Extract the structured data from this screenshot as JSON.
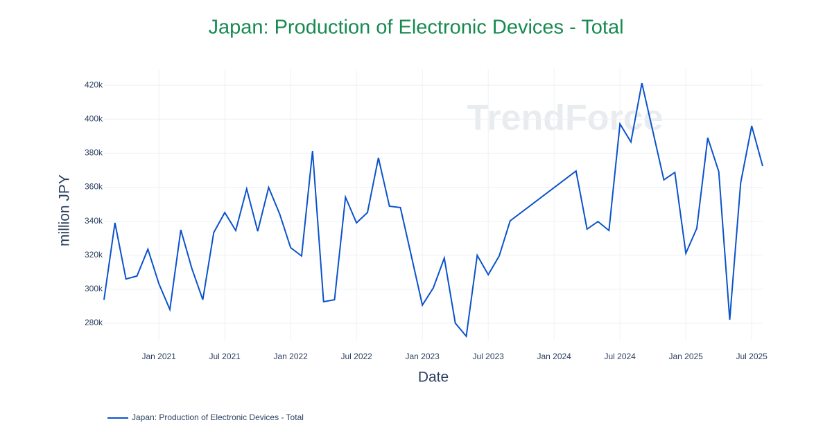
{
  "chart_data": {
    "type": "line",
    "title": "Japan: Production of Electronic Devices - Total",
    "watermark": "TrendForce",
    "xlabel": "Date",
    "ylabel": "million JPY",
    "x": [
      "2020-08",
      "2020-09",
      "2020-10",
      "2020-11",
      "2020-12",
      "2021-01",
      "2021-02",
      "2021-03",
      "2021-04",
      "2021-05",
      "2021-06",
      "2021-07",
      "2021-08",
      "2021-09",
      "2021-10",
      "2021-11",
      "2021-12",
      "2022-01",
      "2022-02",
      "2022-03",
      "2022-04",
      "2022-05",
      "2022-06",
      "2022-07",
      "2022-08",
      "2022-09",
      "2022-10",
      "2022-11",
      "2022-12",
      "2023-01",
      "2023-02",
      "2023-03",
      "2023-04",
      "2023-05",
      "2023-06",
      "2023-07",
      "2023-08",
      "2023-09",
      "2024-03",
      "2024-04",
      "2024-05",
      "2024-06",
      "2024-07",
      "2024-08",
      "2024-09",
      "2024-10",
      "2024-11",
      "2024-12",
      "2025-01",
      "2025-02",
      "2025-03",
      "2025-04",
      "2025-05",
      "2025-06",
      "2025-07",
      "2025-08"
    ],
    "series": [
      {
        "name": "Japan: Production of Electronic Devices - Total",
        "color": "#0a52cc",
        "values": [
          293800,
          339000,
          306000,
          307700,
          323500,
          303200,
          288100,
          334900,
          312200,
          293800,
          333300,
          345100,
          334500,
          359000,
          334100,
          359800,
          344300,
          324400,
          319500,
          381300,
          292600,
          293800,
          354100,
          339000,
          345100,
          377300,
          348800,
          348000,
          319500,
          290600,
          300800,
          318300,
          280000,
          272300,
          319900,
          308500,
          319500,
          340200,
          369500,
          335300,
          339800,
          334500,
          397200,
          386600,
          421200,
          392700,
          364300,
          368700,
          321100,
          335800,
          389100,
          369100,
          282000,
          362600,
          396000,
          372400
        ]
      }
    ],
    "xlim": [
      "2020-08",
      "2025-08"
    ],
    "xticks": [
      {
        "value": "2021-01",
        "label": "Jan 2021"
      },
      {
        "value": "2021-07",
        "label": "Jul 2021"
      },
      {
        "value": "2022-01",
        "label": "Jan 2022"
      },
      {
        "value": "2022-07",
        "label": "Jul 2022"
      },
      {
        "value": "2023-01",
        "label": "Jan 2023"
      },
      {
        "value": "2023-07",
        "label": "Jul 2023"
      },
      {
        "value": "2024-01",
        "label": "Jan 2024"
      },
      {
        "value": "2024-07",
        "label": "Jul 2024"
      },
      {
        "value": "2025-01",
        "label": "Jan 2025"
      },
      {
        "value": "2025-07",
        "label": "Jul 2025"
      }
    ],
    "ylim": [
      269800,
      429400
    ],
    "yticks": [
      {
        "value": 280000,
        "label": "280k"
      },
      {
        "value": 300000,
        "label": "300k"
      },
      {
        "value": 320000,
        "label": "320k"
      },
      {
        "value": 340000,
        "label": "340k"
      },
      {
        "value": 360000,
        "label": "360k"
      },
      {
        "value": 380000,
        "label": "380k"
      },
      {
        "value": 400000,
        "label": "400k"
      },
      {
        "value": 420000,
        "label": "420k"
      }
    ],
    "grid": true
  }
}
